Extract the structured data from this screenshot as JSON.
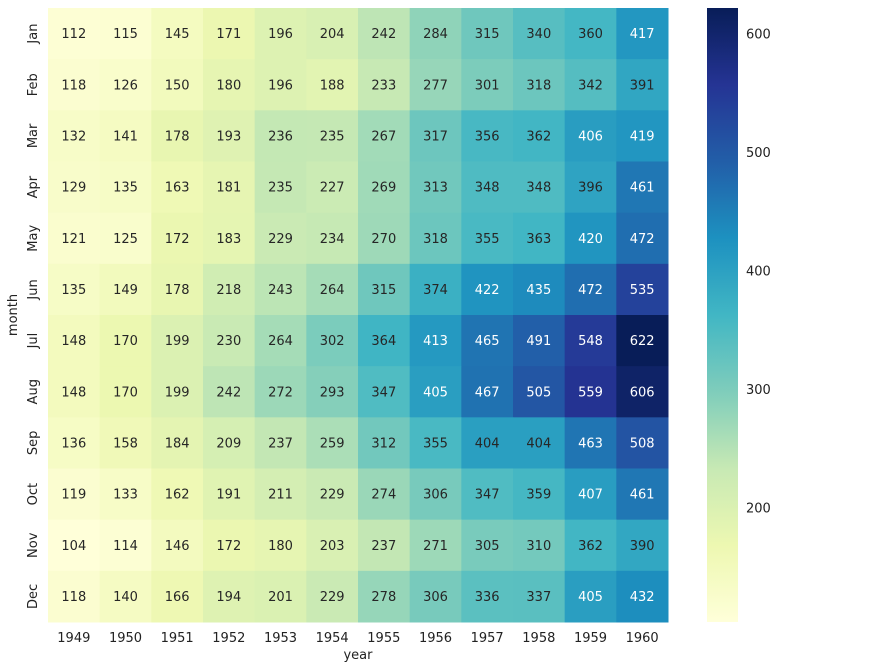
{
  "chart_data": {
    "type": "heatmap",
    "title": "",
    "xlabel": "year",
    "ylabel": "month",
    "colormap": "YlGnBu",
    "colormap_stops": [
      "#ffffd9",
      "#edf8b1",
      "#c7e9b4",
      "#7fcdbb",
      "#41b6c4",
      "#1d91c0",
      "#225ea8",
      "#253494",
      "#081d58"
    ],
    "x": [
      "1949",
      "1950",
      "1951",
      "1952",
      "1953",
      "1954",
      "1955",
      "1956",
      "1957",
      "1958",
      "1959",
      "1960"
    ],
    "y": [
      "Jan",
      "Feb",
      "Mar",
      "Apr",
      "May",
      "Jun",
      "Jul",
      "Aug",
      "Sep",
      "Oct",
      "Nov",
      "Dec"
    ],
    "values": [
      [
        112,
        115,
        145,
        171,
        196,
        204,
        242,
        284,
        315,
        340,
        360,
        417
      ],
      [
        118,
        126,
        150,
        180,
        196,
        188,
        233,
        277,
        301,
        318,
        342,
        391
      ],
      [
        132,
        141,
        178,
        193,
        236,
        235,
        267,
        317,
        356,
        362,
        406,
        419
      ],
      [
        129,
        135,
        163,
        181,
        235,
        227,
        269,
        313,
        348,
        348,
        396,
        461
      ],
      [
        121,
        125,
        172,
        183,
        229,
        234,
        270,
        318,
        355,
        363,
        420,
        472
      ],
      [
        135,
        149,
        178,
        218,
        243,
        264,
        315,
        374,
        422,
        435,
        472,
        535
      ],
      [
        148,
        170,
        199,
        230,
        264,
        302,
        364,
        413,
        465,
        491,
        548,
        622
      ],
      [
        148,
        170,
        199,
        242,
        272,
        293,
        347,
        405,
        467,
        505,
        559,
        606
      ],
      [
        136,
        158,
        184,
        209,
        237,
        259,
        312,
        355,
        404,
        404,
        463,
        508
      ],
      [
        119,
        133,
        162,
        191,
        211,
        229,
        274,
        306,
        347,
        359,
        407,
        461
      ],
      [
        104,
        114,
        146,
        172,
        180,
        203,
        237,
        271,
        305,
        310,
        362,
        390
      ],
      [
        118,
        140,
        166,
        194,
        201,
        229,
        278,
        306,
        336,
        337,
        405,
        432
      ]
    ],
    "colorbar": {
      "range": [
        104,
        622
      ],
      "ticks": [
        200,
        300,
        400,
        500,
        600
      ]
    },
    "annotations": true
  }
}
